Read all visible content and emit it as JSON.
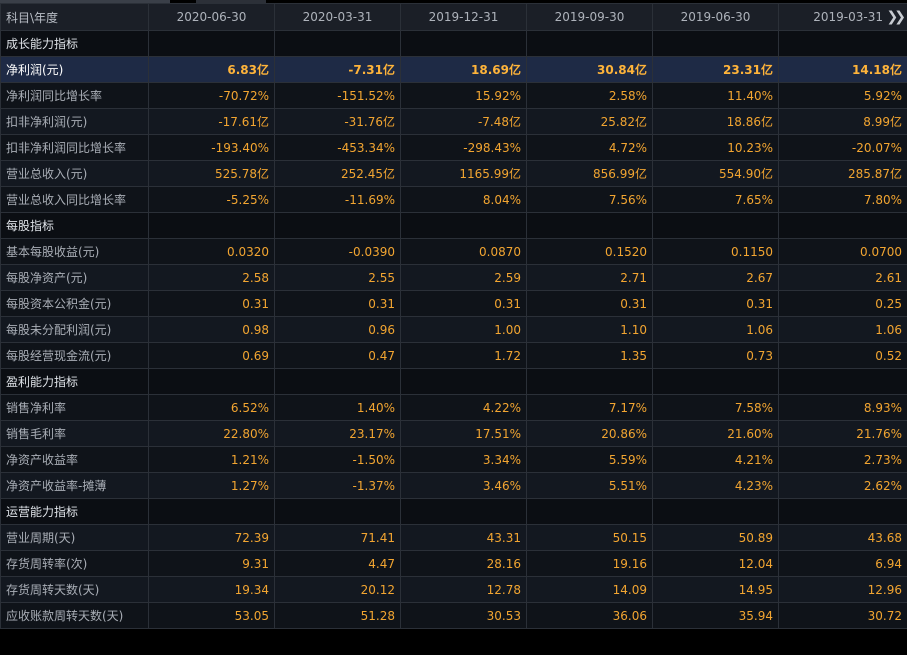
{
  "header": {
    "label": "科目\\年度",
    "periods": [
      "2020-06-30",
      "2020-03-31",
      "2019-12-31",
      "2019-09-30",
      "2019-06-30",
      "2019-03-31"
    ],
    "more_icon": "double-chevron-right-icon"
  },
  "colors": {
    "value": "#f2a531",
    "label": "#a9aeb6",
    "selected_row_bg": "#1e2a45",
    "header_bg": "#1b1f27"
  },
  "selected_row": "净利润(元)",
  "rows": [
    {
      "type": "section",
      "label": "成长能力指标"
    },
    {
      "type": "data",
      "label": "净利润(元)",
      "values": [
        "6.83亿",
        "-7.31亿",
        "18.69亿",
        "30.84亿",
        "23.31亿",
        "14.18亿"
      ]
    },
    {
      "type": "data",
      "label": "净利润同比增长率",
      "values": [
        "-70.72%",
        "-151.52%",
        "15.92%",
        "2.58%",
        "11.40%",
        "5.92%"
      ]
    },
    {
      "type": "data",
      "label": "扣非净利润(元)",
      "values": [
        "-17.61亿",
        "-31.76亿",
        "-7.48亿",
        "25.82亿",
        "18.86亿",
        "8.99亿"
      ]
    },
    {
      "type": "data",
      "label": "扣非净利润同比增长率",
      "values": [
        "-193.40%",
        "-453.34%",
        "-298.43%",
        "4.72%",
        "10.23%",
        "-20.07%"
      ]
    },
    {
      "type": "data",
      "label": "营业总收入(元)",
      "values": [
        "525.78亿",
        "252.45亿",
        "1165.99亿",
        "856.99亿",
        "554.90亿",
        "285.87亿"
      ]
    },
    {
      "type": "data",
      "label": "营业总收入同比增长率",
      "values": [
        "-5.25%",
        "-11.69%",
        "8.04%",
        "7.56%",
        "7.65%",
        "7.80%"
      ]
    },
    {
      "type": "section",
      "label": "每股指标"
    },
    {
      "type": "data",
      "label": "基本每股收益(元)",
      "values": [
        "0.0320",
        "-0.0390",
        "0.0870",
        "0.1520",
        "0.1150",
        "0.0700"
      ]
    },
    {
      "type": "data",
      "label": "每股净资产(元)",
      "values": [
        "2.58",
        "2.55",
        "2.59",
        "2.71",
        "2.67",
        "2.61"
      ]
    },
    {
      "type": "data",
      "label": "每股资本公积金(元)",
      "values": [
        "0.31",
        "0.31",
        "0.31",
        "0.31",
        "0.31",
        "0.25"
      ]
    },
    {
      "type": "data",
      "label": "每股未分配利润(元)",
      "values": [
        "0.98",
        "0.96",
        "1.00",
        "1.10",
        "1.06",
        "1.06"
      ]
    },
    {
      "type": "data",
      "label": "每股经营现金流(元)",
      "values": [
        "0.69",
        "0.47",
        "1.72",
        "1.35",
        "0.73",
        "0.52"
      ]
    },
    {
      "type": "section",
      "label": "盈利能力指标"
    },
    {
      "type": "data",
      "label": "销售净利率",
      "values": [
        "6.52%",
        "1.40%",
        "4.22%",
        "7.17%",
        "7.58%",
        "8.93%"
      ]
    },
    {
      "type": "data",
      "label": "销售毛利率",
      "values": [
        "22.80%",
        "23.17%",
        "17.51%",
        "20.86%",
        "21.60%",
        "21.76%"
      ]
    },
    {
      "type": "data",
      "label": "净资产收益率",
      "values": [
        "1.21%",
        "-1.50%",
        "3.34%",
        "5.59%",
        "4.21%",
        "2.73%"
      ]
    },
    {
      "type": "data",
      "label": "净资产收益率-摊薄",
      "values": [
        "1.27%",
        "-1.37%",
        "3.46%",
        "5.51%",
        "4.23%",
        "2.62%"
      ]
    },
    {
      "type": "section",
      "label": "运营能力指标"
    },
    {
      "type": "data",
      "label": "营业周期(天)",
      "values": [
        "72.39",
        "71.41",
        "43.31",
        "50.15",
        "50.89",
        "43.68"
      ]
    },
    {
      "type": "data",
      "label": "存货周转率(次)",
      "values": [
        "9.31",
        "4.47",
        "28.16",
        "19.16",
        "12.04",
        "6.94"
      ]
    },
    {
      "type": "data",
      "label": "存货周转天数(天)",
      "values": [
        "19.34",
        "20.12",
        "12.78",
        "14.09",
        "14.95",
        "12.96"
      ]
    },
    {
      "type": "data",
      "label": "应收账款周转天数(天)",
      "values": [
        "53.05",
        "51.28",
        "30.53",
        "36.06",
        "35.94",
        "30.72"
      ]
    }
  ]
}
